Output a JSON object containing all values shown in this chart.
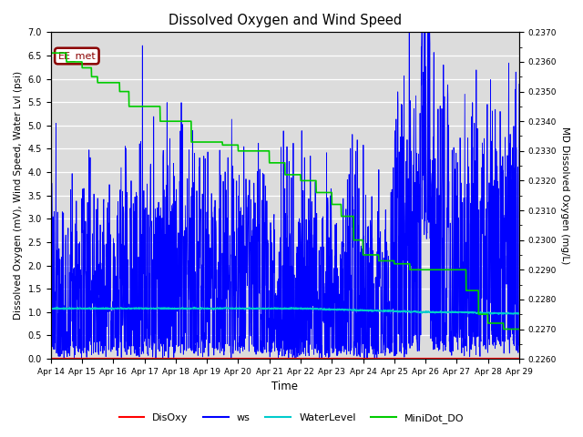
{
  "title": "Dissolved Oxygen and Wind Speed",
  "xlabel": "Time",
  "ylabel_left": "Dissolved Oxygen (mV), Wind Speed, Water Lvl (psi)",
  "ylabel_right": "MD Dissolved Oxygen (mg/L)",
  "ylim_left": [
    0.0,
    7.0
  ],
  "ylim_right": [
    0.226,
    0.237
  ],
  "annotation_text": "EE_met",
  "annotation_color": "#8B0000",
  "bg_color": "#DCDCDC",
  "xtick_labels": [
    "Apr 14",
    "Apr 15",
    "Apr 16",
    "Apr 17",
    "Apr 18",
    "Apr 19",
    "Apr 20",
    "Apr 21",
    "Apr 22",
    "Apr 23",
    "Apr 24",
    "Apr 25",
    "Apr 26",
    "Apr 27",
    "Apr 28",
    "Apr 29"
  ],
  "legend_entries": [
    "DisOxy",
    "ws",
    "WaterLevel",
    "MiniDot_DO"
  ],
  "legend_colors": [
    "#FF0000",
    "#0000FF",
    "#00CCCC",
    "#00CC00"
  ],
  "right_ticks": [
    0.226,
    0.227,
    0.228,
    0.229,
    0.23,
    0.231,
    0.232,
    0.233,
    0.234,
    0.235,
    0.236,
    0.237
  ],
  "md_steps_t": [
    0,
    0.15,
    0.5,
    1.0,
    1.3,
    1.5,
    2.2,
    2.5,
    3.5,
    4.5,
    5.5,
    6.0,
    6.5,
    7.0,
    7.5,
    8.0,
    8.5,
    9.0,
    9.3,
    9.7,
    10.0,
    10.5,
    11.0,
    11.5,
    12.0,
    12.5,
    13.0,
    13.3,
    13.7,
    14.0,
    14.5,
    15.0
  ],
  "md_steps_v": [
    0.2363,
    0.2363,
    0.236,
    0.2358,
    0.2355,
    0.2353,
    0.235,
    0.2345,
    0.234,
    0.2333,
    0.2332,
    0.233,
    0.233,
    0.2326,
    0.2322,
    0.232,
    0.2316,
    0.2312,
    0.2308,
    0.23,
    0.2295,
    0.2293,
    0.2292,
    0.229,
    0.229,
    0.229,
    0.229,
    0.2283,
    0.2275,
    0.2272,
    0.227,
    0.227
  ],
  "wl_t": [
    0,
    8,
    9,
    10,
    11,
    12,
    13,
    14,
    15
  ],
  "wl_v": [
    1.08,
    1.08,
    1.06,
    1.04,
    1.02,
    1.0,
    1.0,
    0.98,
    0.97
  ]
}
